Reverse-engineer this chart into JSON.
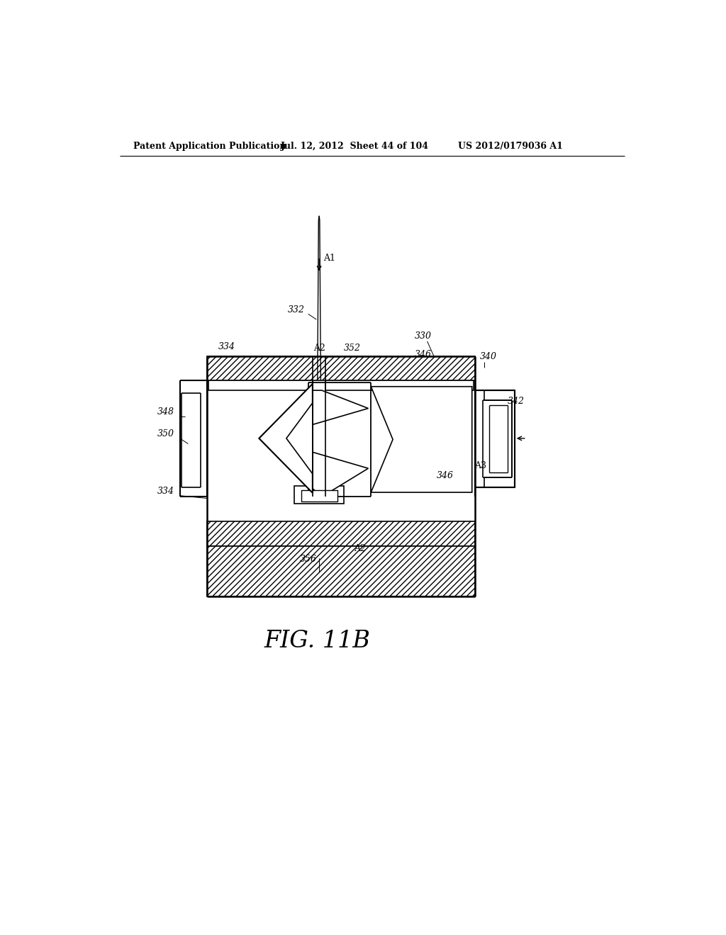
{
  "title_line1": "Patent Application Publication",
  "title_line2": "Jul. 12, 2012  Sheet 44 of 104",
  "title_line3": "US 2012/0179036 A1",
  "fig_label": "FIG. 11B",
  "bg_color": "#ffffff"
}
